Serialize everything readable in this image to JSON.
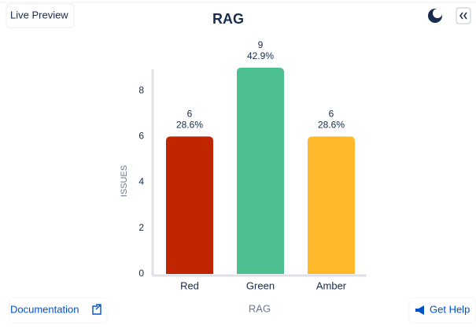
{
  "ui": {
    "live_preview": "Live Preview",
    "documentation": "Documentation",
    "get_help": "Get Help"
  },
  "chart_data": {
    "type": "bar",
    "title": "RAG",
    "x_label": "RAG",
    "y_label": "ISSUES",
    "categories": [
      "Red",
      "Green",
      "Amber"
    ],
    "values": [
      6,
      9,
      6
    ],
    "percent_labels": [
      "28.6%",
      "42.9%",
      "28.6%"
    ],
    "colors": [
      "#bf2600",
      "#4bbf8d",
      "#ffb92b"
    ],
    "ylim": [
      0,
      9
    ],
    "yticks": [
      0,
      2,
      4,
      6,
      8
    ],
    "grid": false
  }
}
